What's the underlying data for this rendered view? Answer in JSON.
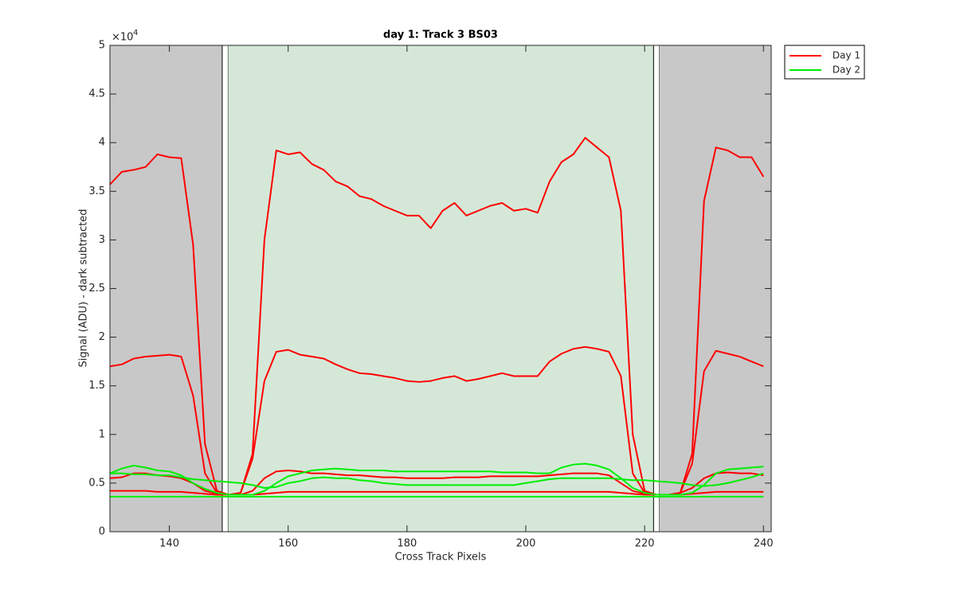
{
  "chart_data": {
    "type": "line",
    "title": "day 1: Track 3  BS03",
    "x_label": "Cross Track Pixels",
    "y_label": "Signal (ADU) - dark subtracted",
    "y_multiplier": {
      "base": "×10",
      "power": "4"
    },
    "xlim": [
      130,
      241.3
    ],
    "ylim": [
      0,
      5
    ],
    "xticks": [
      140,
      160,
      180,
      200,
      220,
      240
    ],
    "yticks": [
      0,
      0.5,
      1,
      1.5,
      2,
      2.5,
      3,
      3.5,
      4,
      4.5,
      5
    ],
    "legend_position": "outside-top-right",
    "regions": [
      {
        "x0": 130,
        "x1": 148.9,
        "color": "#c8c8c8"
      },
      {
        "x0": 148.9,
        "x1": 149.9,
        "color": "#ffffff"
      },
      {
        "x0": 149.9,
        "x1": 221.5,
        "color": "#d5e8d8"
      },
      {
        "x0": 221.5,
        "x1": 222.5,
        "color": "#ffffff"
      },
      {
        "x0": 222.5,
        "x1": 241.3,
        "color": "#c8c8c8"
      }
    ],
    "x": [
      130,
      132,
      134,
      136,
      138,
      140,
      142,
      144,
      146,
      148,
      150,
      152,
      154,
      156,
      158,
      160,
      162,
      164,
      166,
      168,
      170,
      172,
      174,
      176,
      178,
      180,
      182,
      184,
      186,
      188,
      190,
      192,
      194,
      196,
      198,
      200,
      202,
      204,
      206,
      208,
      210,
      212,
      214,
      216,
      218,
      220,
      222,
      224,
      226,
      228,
      230,
      232,
      234,
      236,
      238,
      240
    ],
    "series": [
      {
        "name": "Day 1",
        "color": "#ff0000",
        "lines": [
          [
            3.57,
            3.7,
            3.72,
            3.75,
            3.88,
            3.85,
            3.84,
            2.95,
            0.9,
            0.42,
            0.38,
            0.4,
            0.8,
            3.0,
            3.92,
            3.88,
            3.9,
            3.78,
            3.72,
            3.6,
            3.55,
            3.45,
            3.42,
            3.35,
            3.3,
            3.25,
            3.25,
            3.12,
            3.3,
            3.38,
            3.25,
            3.3,
            3.35,
            3.38,
            3.3,
            3.32,
            3.28,
            3.6,
            3.8,
            3.88,
            4.05,
            3.95,
            3.85,
            3.3,
            1.0,
            0.42,
            0.38,
            0.38,
            0.4,
            0.8,
            3.4,
            3.95,
            3.92,
            3.85,
            3.85,
            3.65
          ],
          [
            1.7,
            1.72,
            1.78,
            1.8,
            1.81,
            1.82,
            1.8,
            1.4,
            0.6,
            0.4,
            0.38,
            0.4,
            0.75,
            1.55,
            1.85,
            1.87,
            1.82,
            1.8,
            1.78,
            1.72,
            1.67,
            1.63,
            1.62,
            1.6,
            1.58,
            1.55,
            1.54,
            1.55,
            1.58,
            1.6,
            1.55,
            1.57,
            1.6,
            1.63,
            1.6,
            1.6,
            1.6,
            1.75,
            1.83,
            1.88,
            1.9,
            1.88,
            1.85,
            1.6,
            0.6,
            0.4,
            0.38,
            0.38,
            0.4,
            0.7,
            1.65,
            1.86,
            1.83,
            1.8,
            1.75,
            1.7
          ],
          [
            0.55,
            0.56,
            0.6,
            0.6,
            0.58,
            0.57,
            0.55,
            0.5,
            0.42,
            0.39,
            0.38,
            0.38,
            0.42,
            0.55,
            0.62,
            0.63,
            0.62,
            0.6,
            0.6,
            0.59,
            0.58,
            0.58,
            0.57,
            0.56,
            0.56,
            0.55,
            0.55,
            0.55,
            0.55,
            0.56,
            0.56,
            0.56,
            0.57,
            0.57,
            0.57,
            0.57,
            0.57,
            0.58,
            0.59,
            0.6,
            0.6,
            0.6,
            0.58,
            0.5,
            0.42,
            0.39,
            0.38,
            0.38,
            0.4,
            0.45,
            0.55,
            0.6,
            0.61,
            0.6,
            0.6,
            0.58
          ],
          [
            0.42,
            0.42,
            0.42,
            0.42,
            0.41,
            0.41,
            0.41,
            0.4,
            0.39,
            0.38,
            0.38,
            0.38,
            0.38,
            0.39,
            0.4,
            0.41,
            0.41,
            0.41,
            0.41,
            0.41,
            0.41,
            0.41,
            0.41,
            0.41,
            0.41,
            0.41,
            0.41,
            0.41,
            0.41,
            0.41,
            0.41,
            0.41,
            0.41,
            0.41,
            0.41,
            0.41,
            0.41,
            0.41,
            0.41,
            0.41,
            0.41,
            0.41,
            0.41,
            0.4,
            0.39,
            0.38,
            0.38,
            0.38,
            0.38,
            0.39,
            0.4,
            0.41,
            0.41,
            0.41,
            0.41,
            0.41
          ]
        ]
      },
      {
        "name": "Day 2",
        "color": "#00ee00",
        "lines": [
          [
            0.6,
            0.65,
            0.68,
            0.66,
            0.63,
            0.62,
            0.58,
            0.5,
            0.44,
            0.4,
            0.38,
            0.38,
            0.38,
            0.42,
            0.5,
            0.57,
            0.6,
            0.63,
            0.64,
            0.65,
            0.64,
            0.63,
            0.63,
            0.63,
            0.62,
            0.62,
            0.62,
            0.62,
            0.62,
            0.62,
            0.62,
            0.62,
            0.62,
            0.61,
            0.61,
            0.61,
            0.6,
            0.6,
            0.66,
            0.69,
            0.7,
            0.68,
            0.64,
            0.55,
            0.45,
            0.4,
            0.38,
            0.38,
            0.38,
            0.4,
            0.48,
            0.6,
            0.64,
            0.65,
            0.66,
            0.67
          ],
          [
            0.6,
            0.6,
            0.59,
            0.59,
            0.58,
            0.58,
            0.56,
            0.54,
            0.53,
            0.52,
            0.51,
            0.5,
            0.48,
            0.45,
            0.46,
            0.5,
            0.52,
            0.55,
            0.56,
            0.55,
            0.55,
            0.53,
            0.52,
            0.5,
            0.49,
            0.48,
            0.48,
            0.48,
            0.48,
            0.48,
            0.48,
            0.48,
            0.48,
            0.48,
            0.48,
            0.5,
            0.52,
            0.54,
            0.55,
            0.55,
            0.55,
            0.55,
            0.55,
            0.54,
            0.53,
            0.53,
            0.52,
            0.51,
            0.5,
            0.48,
            0.47,
            0.48,
            0.5,
            0.53,
            0.56,
            0.6
          ],
          [
            0.36,
            0.36,
            0.36,
            0.36,
            0.36,
            0.36,
            0.36,
            0.36,
            0.36,
            0.36,
            0.36,
            0.36,
            0.36,
            0.36,
            0.36,
            0.36,
            0.36,
            0.36,
            0.36,
            0.36,
            0.36,
            0.36,
            0.36,
            0.36,
            0.36,
            0.36,
            0.36,
            0.36,
            0.36,
            0.36,
            0.36,
            0.36,
            0.36,
            0.36,
            0.36,
            0.36,
            0.36,
            0.36,
            0.36,
            0.36,
            0.36,
            0.36,
            0.36,
            0.36,
            0.36,
            0.36,
            0.36,
            0.36,
            0.36,
            0.36,
            0.36,
            0.36,
            0.36,
            0.36,
            0.36,
            0.36
          ]
        ]
      }
    ]
  }
}
